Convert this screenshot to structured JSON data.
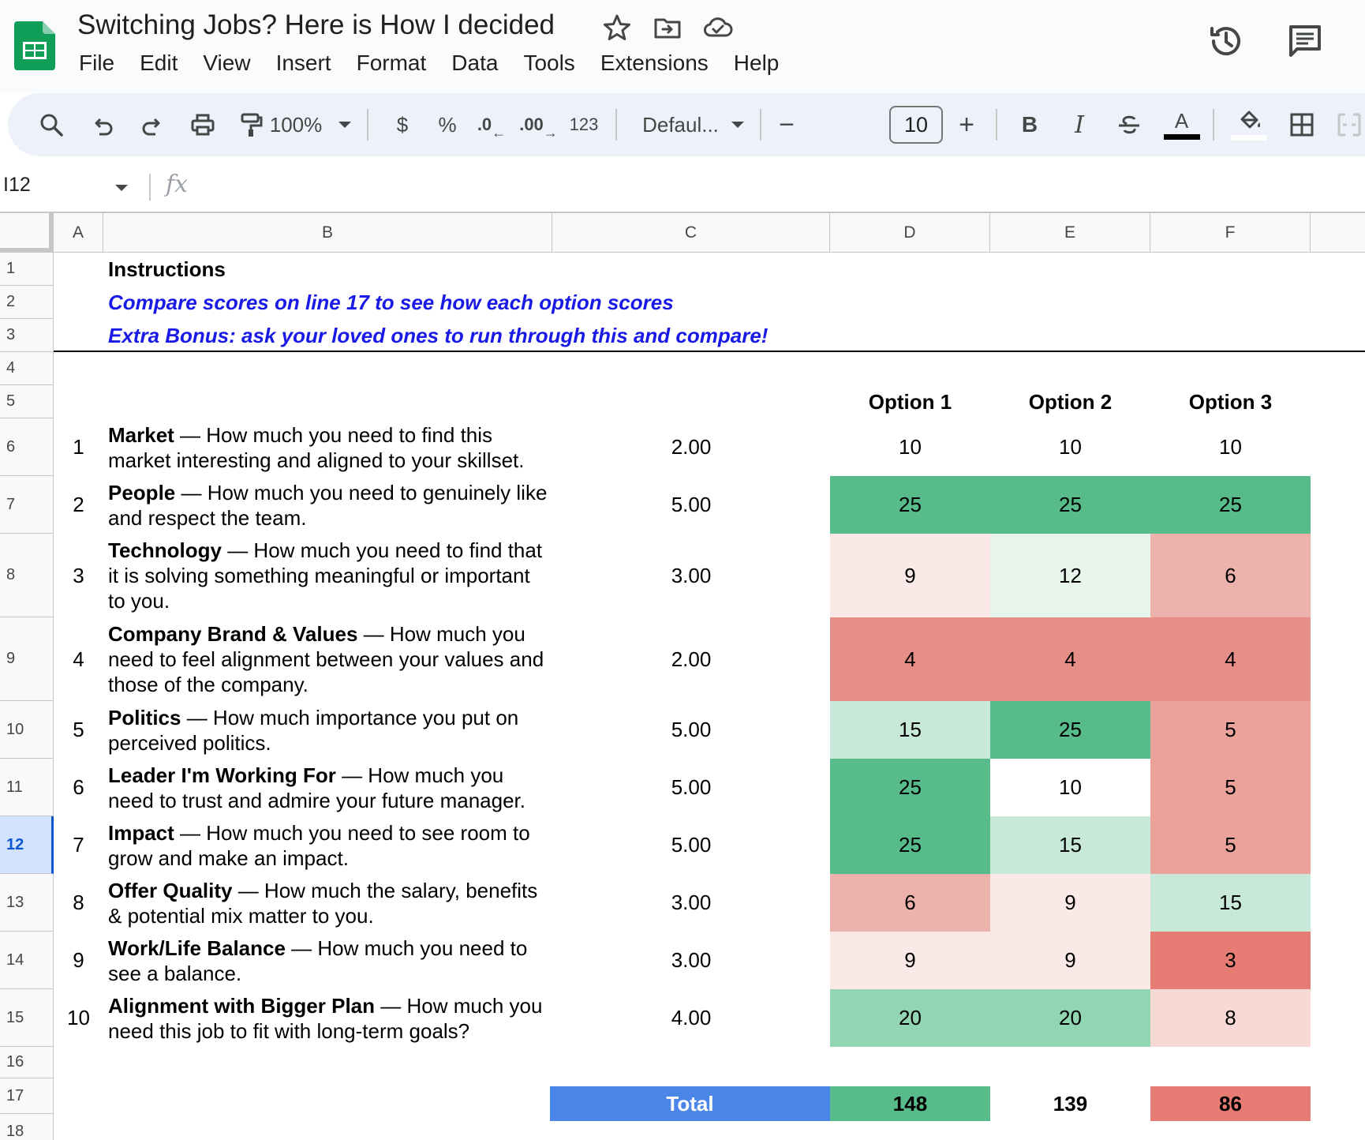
{
  "app": {
    "doc_title": "Switching Jobs?  Here is How I decided",
    "menu": [
      "File",
      "Edit",
      "View",
      "Insert",
      "Format",
      "Data",
      "Tools",
      "Extensions",
      "Help"
    ]
  },
  "toolbar": {
    "zoom": "100%",
    "currency": "$",
    "percent": "%",
    "decrease_decimal": ".0",
    "increase_decimal": ".00",
    "number_format": "123",
    "font_name": "Defaul...",
    "font_size": "10",
    "minus": "−",
    "plus": "+",
    "bold": "B",
    "italic": "I",
    "text_color_letter": "A"
  },
  "formula_bar": {
    "name_box": "I12",
    "fx": "fx",
    "value": ""
  },
  "columns": [
    "A",
    "B",
    "C",
    "D",
    "E",
    "F"
  ],
  "rows": [
    "1",
    "2",
    "3",
    "4",
    "5",
    "6",
    "7",
    "8",
    "9",
    "10",
    "11",
    "12",
    "13",
    "14",
    "15",
    "16",
    "17",
    "18"
  ],
  "selected_row": "12",
  "sheet": {
    "instructions_title": "Instructions",
    "instruction_line_1": "Compare scores on line 17 to see how each option scores",
    "instruction_line_2": "Extra Bonus: ask your loved ones to run through this and compare!",
    "options": [
      "Option 1",
      "Option 2",
      "Option 3"
    ],
    "factors": [
      {
        "num": "1",
        "title": "Market",
        "desc": " — How much you need to find this market interesting and aligned to your skillset.",
        "weight": "2.00",
        "scores": [
          "10",
          "10",
          "10"
        ]
      },
      {
        "num": "2",
        "title": "People",
        "desc": " — How much you need to genuinely like and respect the team.",
        "weight": "5.00",
        "scores": [
          "25",
          "25",
          "25"
        ]
      },
      {
        "num": "3",
        "title": "Technology",
        "desc": " — How much you need to find that it is solving something meaningful or important to you.",
        "weight": "3.00",
        "scores": [
          "9",
          "12",
          "6"
        ]
      },
      {
        "num": "4",
        "title": "Company Brand & Values",
        "desc": " — How much you need to feel alignment between your values and those of the company.",
        "weight": "2.00",
        "scores": [
          "4",
          "4",
          "4"
        ]
      },
      {
        "num": "5",
        "title": "Politics",
        "desc": " — How much importance you put on perceived politics.",
        "weight": "5.00",
        "scores": [
          "15",
          "25",
          "5"
        ]
      },
      {
        "num": "6",
        "title": "Leader I'm Working For",
        "desc": " — How much you need to trust and admire your future manager.",
        "weight": "5.00",
        "scores": [
          "25",
          "10",
          "5"
        ]
      },
      {
        "num": "7",
        "title": "Impact",
        "desc": " — How much you need to see room to grow and make an impact.",
        "weight": "5.00",
        "scores": [
          "25",
          "15",
          "5"
        ]
      },
      {
        "num": "8",
        "title": "Offer Quality",
        "desc": " — How much the salary, benefits & potential mix matter to you.",
        "weight": "3.00",
        "scores": [
          "6",
          "9",
          "15"
        ]
      },
      {
        "num": "9",
        "title": "Work/Life Balance",
        "desc": " — How much you need to see a balance.",
        "weight": "3.00",
        "scores": [
          "9",
          "9",
          "3"
        ]
      },
      {
        "num": "10",
        "title": "Alignment with Bigger Plan",
        "desc": " — How much you need this job to fit with long-term goals?",
        "weight": "4.00",
        "scores": [
          "20",
          "20",
          "8"
        ]
      }
    ],
    "score_colors": [
      [
        "#ffffff",
        "#ffffff",
        "#ffffff"
      ],
      [
        "#57bb8a",
        "#57bb8a",
        "#57bb8a"
      ],
      [
        "#fbe9e8",
        "#e6f4ec",
        "#eeb2ac"
      ],
      [
        "#e68f88",
        "#e68f88",
        "#e68f88"
      ],
      [
        "#c8e9da",
        "#57bb8a",
        "#eba29b"
      ],
      [
        "#57bb8a",
        "#ffffff",
        "#eba29b"
      ],
      [
        "#57bb8a",
        "#c8e9da",
        "#eba29b"
      ],
      [
        "#eeb2ac",
        "#fbe9e8",
        "#c8e9da"
      ],
      [
        "#fbe9e8",
        "#fbe9e8",
        "#e67c73"
      ],
      [
        "#92d5b3",
        "#92d5b3",
        "#f7d9d6"
      ]
    ],
    "total_label": "Total",
    "total_label_color": "#4a86e8",
    "totals": [
      "148",
      "139",
      "86"
    ],
    "total_colors": [
      "#57bb8a",
      "#ffffff",
      "#e67c73"
    ]
  }
}
